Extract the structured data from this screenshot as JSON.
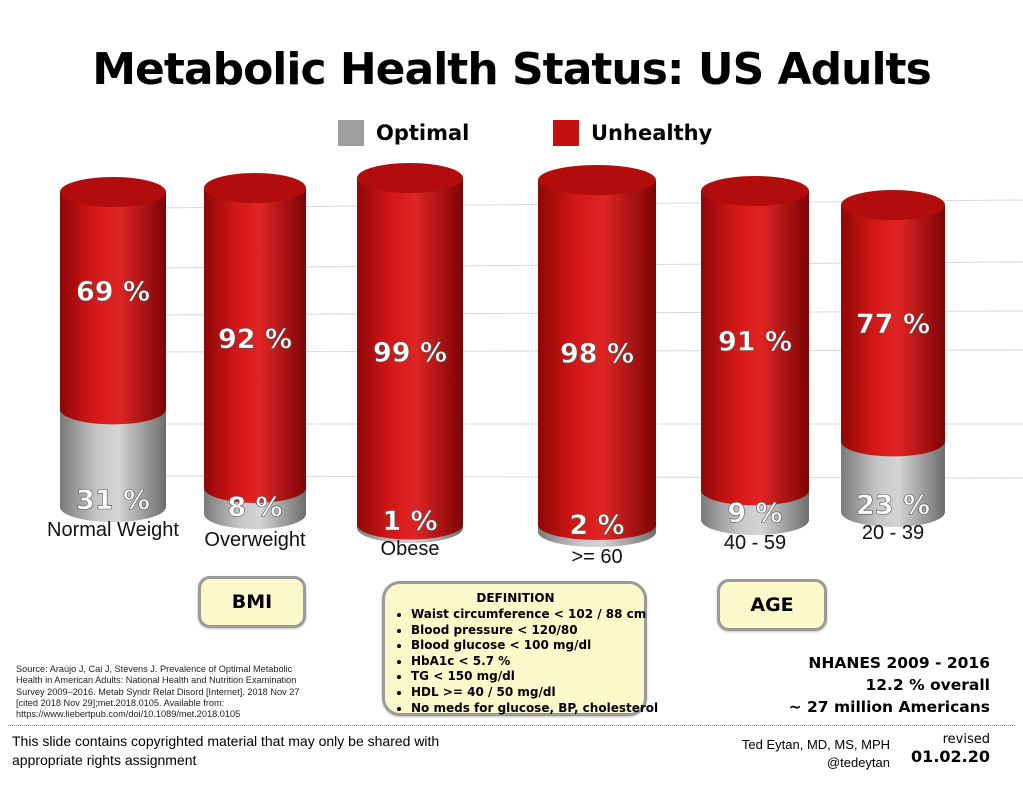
{
  "title": "Metabolic Health Status: US Adults",
  "legend": [
    {
      "label": "Optimal",
      "color": "#9e9e9e"
    },
    {
      "label": "Unhealthy",
      "color": "#c40f0f"
    }
  ],
  "chart_data": {
    "type": "bar",
    "stacked": true,
    "title": "Metabolic Health Status: US Adults",
    "categories": [
      "Normal Weight",
      "Overweight",
      "Obese",
      ">= 60",
      "40 - 59",
      "20 - 39"
    ],
    "series": [
      {
        "name": "Optimal",
        "values": [
          31,
          8,
          1,
          2,
          9,
          23
        ],
        "labels": [
          "31 %",
          "8 %",
          "1 %",
          "2 %",
          "9 %",
          "23 %"
        ],
        "color": "#a8a8a8"
      },
      {
        "name": "Unhealthy",
        "values": [
          69,
          92,
          99,
          98,
          91,
          77
        ],
        "labels": [
          "69 %",
          "92 %",
          "99 %",
          "98 %",
          "91 %",
          "77 %"
        ],
        "color": "#c40f0f"
      }
    ],
    "ylim": [
      0,
      100
    ],
    "grid": true
  },
  "groups": {
    "bmi": "BMI",
    "age": "AGE"
  },
  "definition": {
    "title": "DEFINITION",
    "items": [
      "Waist circumference < 102 / 88 cm",
      "Blood pressure < 120/80",
      "Blood glucose < 100 mg/dl",
      "HbA1c < 5.7 %",
      "TG < 150 mg/dl",
      "HDL >= 40 / 50 mg/dl",
      "No meds for glucose, BP, cholesterol"
    ]
  },
  "source": "Source: Araújo J, Cai J, Stevens J. Prevalence of Optimal Metabolic Health in American Adults: National Health and Nutrition Examination Survey 2009–2016. Metab Syndr Relat Disord [Internet]. 2018 Nov 27 [cited 2018 Nov 29];met.2018.0105. Available from: https://www.liebertpub.com/doi/10.1089/met.2018.0105",
  "nhanes": {
    "line1": "NHANES 2009 - 2016",
    "line2": "12.2 % overall",
    "line3": "~ 27 million Americans"
  },
  "copyright": "This slide contains copyrighted material that may only be shared with appropriate rights assignment",
  "author": {
    "name": "Ted Eytan, MD, MS, MPH",
    "handle": "@tedeytan"
  },
  "revised": {
    "label": "revised",
    "date": "01.02.20"
  }
}
